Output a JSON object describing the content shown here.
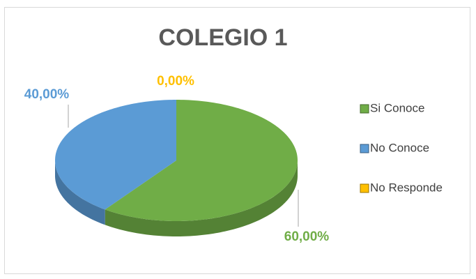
{
  "chart_data": {
    "type": "pie3d",
    "title": "COLEGIO 1",
    "categories": [
      "Si Conoce",
      "No Conoce",
      "No Responde"
    ],
    "values": [
      60,
      40,
      0
    ],
    "value_labels": [
      "60,00%",
      "40,00%",
      "0,00%"
    ],
    "colors": [
      "#70ad47",
      "#5b9bd5",
      "#ffc000"
    ],
    "legend": "right"
  }
}
